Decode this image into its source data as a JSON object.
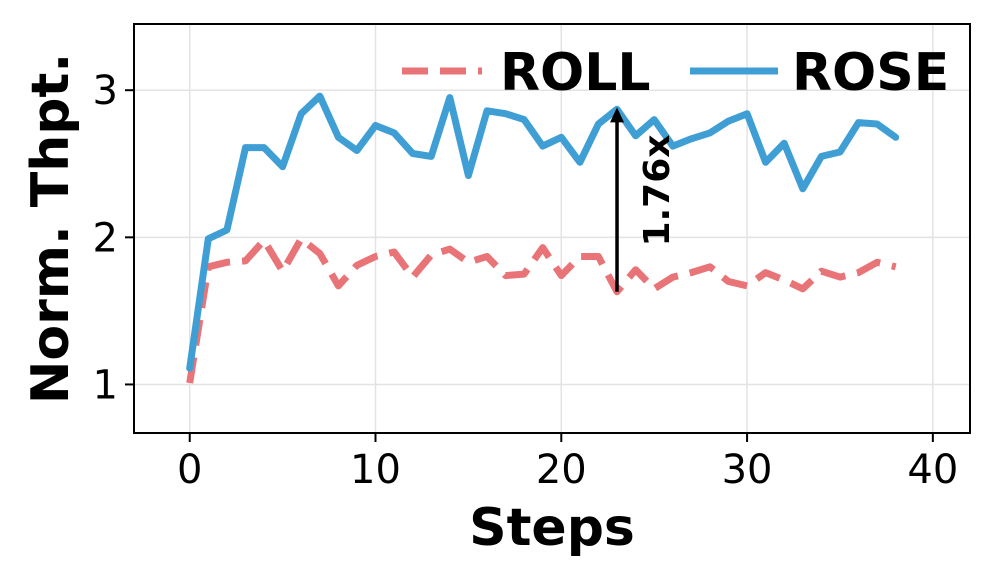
{
  "chart_data": {
    "type": "line",
    "title": "",
    "xlabel": "Steps",
    "ylabel": "Norm. Thpt.",
    "xlim": [
      -3,
      42
    ],
    "ylim": [
      0.67,
      3.45
    ],
    "xticks": [
      0,
      10,
      20,
      30,
      40
    ],
    "xtick_labels": [
      "0",
      "10",
      "20",
      "30",
      "40"
    ],
    "yticks": [
      1,
      2,
      3
    ],
    "ytick_labels": [
      "1",
      "2",
      "3"
    ],
    "grid": true,
    "legend_position": "top-right",
    "series": [
      {
        "name": "ROLL",
        "color": "#E87477",
        "style": "dashed",
        "x": [
          0,
          1,
          2,
          3,
          4,
          5,
          6,
          7,
          8,
          9,
          10,
          11,
          12,
          13,
          14,
          15,
          16,
          17,
          18,
          19,
          20,
          21,
          22,
          23,
          24,
          25,
          26,
          27,
          28,
          29,
          30,
          31,
          32,
          33,
          34,
          35,
          36,
          37,
          38
        ],
        "y": [
          1.01,
          1.8,
          1.83,
          1.84,
          1.98,
          1.77,
          1.99,
          1.89,
          1.67,
          1.81,
          1.87,
          1.9,
          1.73,
          1.88,
          1.92,
          1.83,
          1.87,
          1.74,
          1.75,
          1.93,
          1.74,
          1.87,
          1.87,
          1.63,
          1.78,
          1.65,
          1.73,
          1.76,
          1.8,
          1.7,
          1.67,
          1.76,
          1.71,
          1.65,
          1.77,
          1.73,
          1.76,
          1.83,
          1.8
        ]
      },
      {
        "name": "ROSE",
        "color": "#3F9FD5",
        "style": "solid",
        "x": [
          0,
          1,
          2,
          3,
          4,
          5,
          6,
          7,
          8,
          9,
          10,
          11,
          12,
          13,
          14,
          15,
          16,
          17,
          18,
          19,
          20,
          21,
          22,
          23,
          24,
          25,
          26,
          27,
          28,
          29,
          30,
          31,
          32,
          33,
          34,
          35,
          36,
          37,
          38
        ],
        "y": [
          1.11,
          1.99,
          2.05,
          2.61,
          2.61,
          2.48,
          2.84,
          2.96,
          2.68,
          2.59,
          2.76,
          2.71,
          2.57,
          2.55,
          2.95,
          2.42,
          2.86,
          2.84,
          2.8,
          2.62,
          2.68,
          2.51,
          2.77,
          2.87,
          2.69,
          2.8,
          2.62,
          2.67,
          2.71,
          2.79,
          2.84,
          2.51,
          2.64,
          2.33,
          2.55,
          2.58,
          2.78,
          2.77,
          2.68
        ]
      }
    ],
    "annotation": {
      "text": "1.76x",
      "x": 23,
      "y_from": 1.63,
      "y_to": 2.87
    }
  }
}
